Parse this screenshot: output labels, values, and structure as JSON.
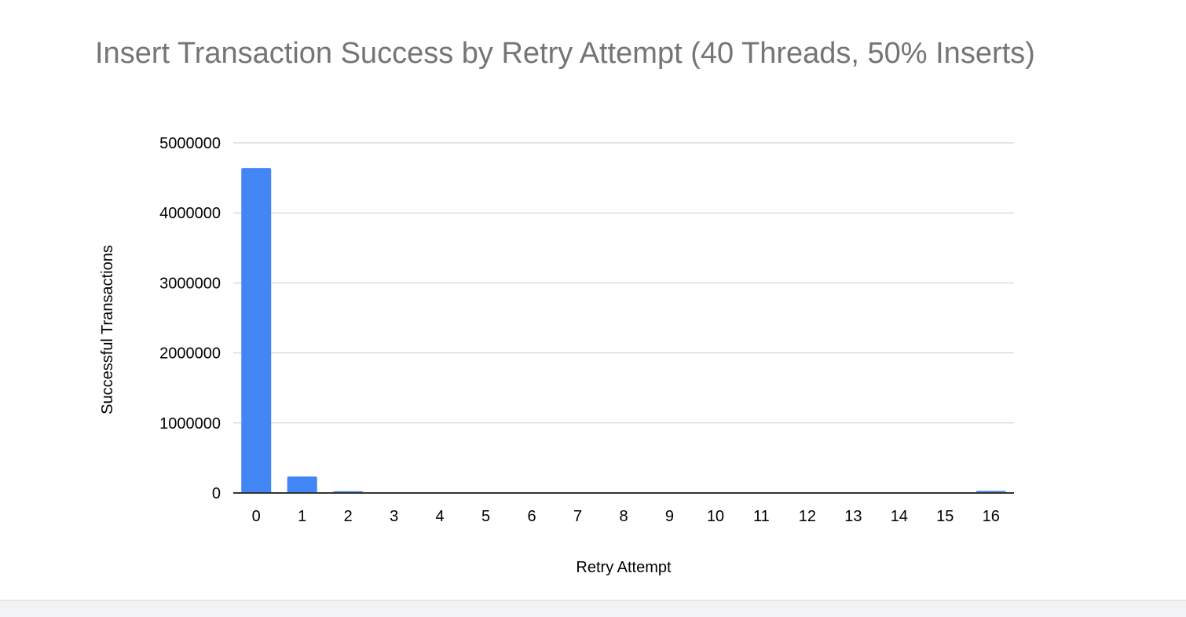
{
  "chart_data": {
    "type": "bar",
    "title": "Insert Transaction Success by Retry Attempt (40 Threads, 50% Inserts)",
    "xlabel": "Retry Attempt",
    "ylabel": "Successful Transactions",
    "categories": [
      "0",
      "1",
      "2",
      "3",
      "4",
      "5",
      "6",
      "7",
      "8",
      "9",
      "10",
      "11",
      "12",
      "13",
      "14",
      "15",
      "16"
    ],
    "values": [
      4640000,
      235000,
      25000,
      2000,
      500,
      200,
      100,
      50,
      30,
      20,
      10,
      10,
      5,
      5,
      5,
      5,
      30000
    ],
    "ylim": [
      0,
      5000000
    ],
    "yticks": [
      "0",
      "1000000",
      "2000000",
      "3000000",
      "4000000",
      "5000000"
    ],
    "grid": true,
    "legend": "none",
    "colors": {
      "bar": "#4285f4",
      "grid": "#cccccc",
      "axis": "#333333",
      "title": "#757575"
    }
  }
}
